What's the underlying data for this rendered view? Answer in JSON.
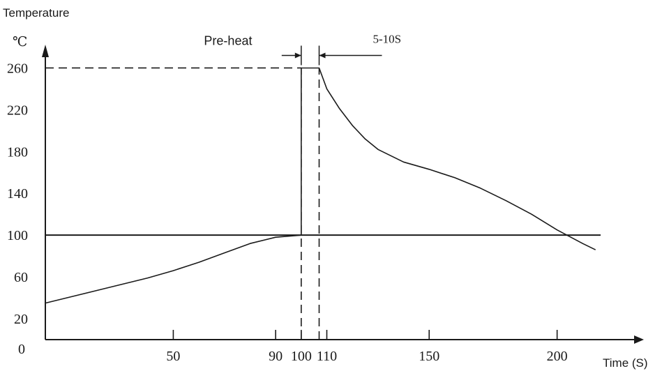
{
  "chart_data": {
    "type": "line",
    "ylabel": "Temperature",
    "yunit": "℃",
    "xlabel": "Time (S)",
    "xlim": [
      0,
      220
    ],
    "ylim": [
      0,
      285
    ],
    "x_ticks": [
      {
        "value": 50,
        "label": "50"
      },
      {
        "value": 90,
        "label": "90"
      },
      {
        "value": 100,
        "label": "100"
      },
      {
        "value": 110,
        "label": "110"
      },
      {
        "value": 150,
        "label": "150"
      },
      {
        "value": 200,
        "label": "200"
      }
    ],
    "x_origin_label": "0",
    "y_ticks": [
      {
        "value": 20,
        "label": "20"
      },
      {
        "value": 60,
        "label": "60"
      },
      {
        "value": 100,
        "label": "100"
      },
      {
        "value": 140,
        "label": "140"
      },
      {
        "value": 180,
        "label": "180"
      },
      {
        "value": 220,
        "label": "220"
      },
      {
        "value": 260,
        "label": "260"
      }
    ],
    "series": [
      {
        "points": [
          [
            0,
            35
          ],
          [
            10,
            41
          ],
          [
            20,
            47
          ],
          [
            30,
            53
          ],
          [
            40,
            59
          ],
          [
            50,
            66
          ],
          [
            60,
            74
          ],
          [
            70,
            83
          ],
          [
            80,
            92
          ],
          [
            90,
            98
          ],
          [
            100,
            100
          ],
          [
            100,
            260
          ],
          [
            107,
            260
          ],
          [
            110,
            240
          ],
          [
            115,
            221
          ],
          [
            120,
            205
          ],
          [
            125,
            192
          ],
          [
            130,
            182
          ],
          [
            140,
            170
          ],
          [
            150,
            163
          ],
          [
            160,
            155
          ],
          [
            170,
            145
          ],
          [
            180,
            133
          ],
          [
            190,
            120
          ],
          [
            200,
            105
          ],
          [
            210,
            92
          ],
          [
            215,
            86
          ]
        ]
      }
    ],
    "reference_lines": [
      {
        "orientation": "horizontal",
        "value": 100,
        "style": "solid",
        "x_start": 0,
        "x_end": 217
      },
      {
        "orientation": "horizontal",
        "value": 260,
        "style": "dashed",
        "x_start": 0,
        "x_end": 100
      },
      {
        "orientation": "vertical",
        "value": 100,
        "style": "dashed",
        "y_start": 0,
        "y_end": 260
      },
      {
        "orientation": "vertical",
        "value": 107,
        "style": "dashed",
        "y_start": 0,
        "y_end": 260
      }
    ],
    "annotations": [
      {
        "text": "Pre-heat",
        "x": 62,
        "y": 282
      },
      {
        "text": "5-10S",
        "x": 128,
        "y": 284
      }
    ],
    "dimension_marker": {
      "x_from": 100,
      "x_to": 107,
      "y": 272
    }
  }
}
